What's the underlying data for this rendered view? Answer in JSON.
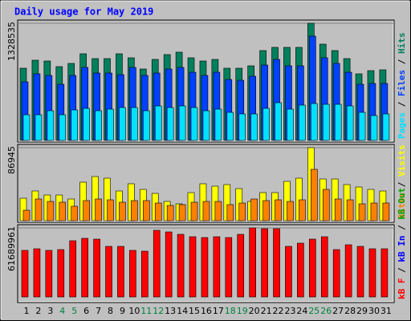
{
  "chart_data": [
    {
      "type": "bar",
      "title": "Daily usage for May 2019",
      "legend_separator": " / ",
      "ylim": [
        0,
        1328535
      ],
      "yticks": [
        1328535
      ],
      "series": [
        {
          "name": "Pages",
          "color": "#00e0ff",
          "values": [
            291190,
            291190,
            336690,
            291190,
            345790,
            363980,
            336690,
            354890,
            373080,
            373080,
            336690,
            391280,
            373080,
            391280,
            373080,
            336690,
            354890,
            318490,
            300290,
            300290,
            363980,
            427680,
            354890,
            400380,
            418580,
            409480,
            409480,
            391280,
            318490,
            282090,
            300290
          ]
        },
        {
          "name": "Files",
          "color": "#0040ff",
          "values": [
            664270,
            755270,
            737070,
            636970,
            737070,
            828060,
            764370,
            764370,
            746170,
            828060,
            737070,
            764370,
            809860,
            828060,
            773470,
            737070,
            773470,
            691570,
            682470,
            727970,
            855360,
            919060,
            846260,
            846260,
            1182950,
            937260,
            873560,
            773470,
            636970,
            646070,
            646070
          ]
        },
        {
          "name": "Hits",
          "color": "#00805c",
          "values": [
            818960,
            909960,
            900860,
            837160,
            873560,
            982760,
            928160,
            928160,
            982760,
            937260,
            809860,
            919060,
            973660,
            1000960,
            937260,
            900860,
            919060,
            818960,
            818960,
            846260,
            1019160,
            1055560,
            1055560,
            1055560,
            1328535,
            1091960,
            1019160,
            928160,
            755270,
            791670,
            800770
          ]
        }
      ]
    },
    {
      "type": "bar",
      "legend_separator": " / ",
      "ylim": [
        0,
        86945
      ],
      "yticks": [
        86945
      ],
      "series": [
        {
          "name": "Sites",
          "color": "#ff8000",
          "values": [
            12420,
            25800,
            22930,
            21970,
            17200,
            23890,
            25800,
            24840,
            21970,
            23890,
            23890,
            21020,
            18150,
            19110,
            21970,
            22930,
            22930,
            19110,
            21020,
            25800,
            23890,
            24840,
            22930,
            24840,
            61150,
            37260,
            25800,
            24840,
            20060,
            21020,
            21020
          ]
        },
        {
          "name": "Visits",
          "color": "#ffff00",
          "values": [
            26750,
            35350,
            30570,
            30570,
            25800,
            45860,
            52550,
            50640,
            35350,
            43950,
            37260,
            32480,
            22930,
            20060,
            33440,
            43950,
            41080,
            42990,
            38220,
            22930,
            33440,
            33440,
            46810,
            50640,
            86945,
            49680,
            49680,
            42990,
            40130,
            37260,
            35350
          ]
        }
      ]
    },
    {
      "type": "bar",
      "legend_separator": " / ",
      "ylim": [
        0,
        61689961
      ],
      "yticks": [
        61689961
      ],
      "categories": [
        "1",
        "2",
        "3",
        "4",
        "5",
        "6",
        "7",
        "8",
        "9",
        "10",
        "11",
        "12",
        "13",
        "14",
        "15",
        "16",
        "17",
        "18",
        "19",
        "20",
        "21",
        "22",
        "23",
        "24",
        "25",
        "26",
        "27",
        "28",
        "29",
        "30",
        "31"
      ],
      "category_colors": [
        "#000000",
        "#000000",
        "#000000",
        "#008040",
        "#008040",
        "#000000",
        "#000000",
        "#000000",
        "#000000",
        "#000000",
        "#008040",
        "#008040",
        "#000000",
        "#000000",
        "#000000",
        "#000000",
        "#000000",
        "#008040",
        "#008040",
        "#000000",
        "#000000",
        "#000000",
        "#000000",
        "#000000",
        "#008040",
        "#008040",
        "#000000",
        "#000000",
        "#000000",
        "#000000",
        "#000000"
      ],
      "series": [
        {
          "name": "kB F",
          "color": "#ff0000",
          "values": [
            41605000,
            43040000,
            41605000,
            42322000,
            50213000,
            52365000,
            51647000,
            45191000,
            45191000,
            41605000,
            40888000,
            59538000,
            58103000,
            55951000,
            53799000,
            53082000,
            53799000,
            53082000,
            55951000,
            61689961,
            60973000,
            60973000,
            45191000,
            48061000,
            51647000,
            53799000,
            42322000,
            46626000,
            45191000,
            43040000,
            43040000
          ]
        },
        {
          "name": "kB In",
          "color": "#0000ff"
        },
        {
          "name": "kB Out",
          "color": "#00a000"
        }
      ]
    }
  ]
}
